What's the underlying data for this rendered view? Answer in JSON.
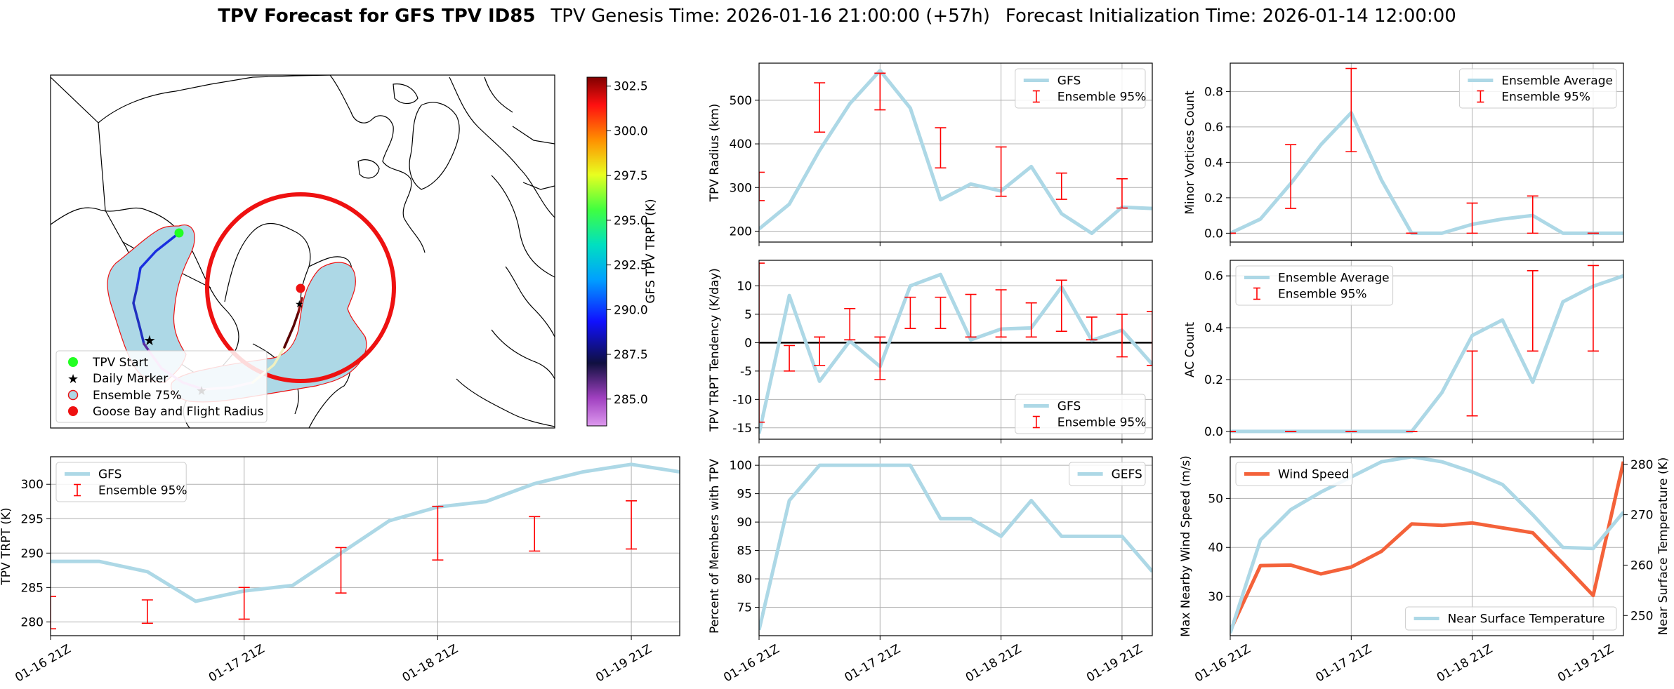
{
  "title": {
    "bold": "TPV Forecast for GFS TPV ID85",
    "genesis": "TPV Genesis Time: 2026-01-16 21:00:00 (+57h)",
    "init": "Forecast Initialization Time: 2026-01-14 12:00:00"
  },
  "colors": {
    "mean_line": "#add8e6",
    "error_bar": "#ff0000",
    "wind_line": "#f4623a",
    "temp_axis": "#4169e1",
    "wind_axis": "#f4623a",
    "land": "#add8e6",
    "circle": "#ee1111"
  },
  "map_panel": {
    "colorbar": {
      "label": "GFS TPV TRPT (K)",
      "ticks": [
        "285.0",
        "287.5",
        "290.0",
        "292.5",
        "295.0",
        "297.5",
        "300.0",
        "302.5"
      ],
      "range": [
        283.5,
        303.0
      ]
    },
    "legend": [
      "TPV Start",
      "Daily Marker",
      "Ensemble 75%",
      "Goose Bay and Flight Radius"
    ]
  },
  "chart_data": [
    {
      "id": "radius",
      "type": "line",
      "ylabel": "TPV Radius (km)",
      "ylim": [
        175,
        585
      ],
      "yticks": [
        200,
        300,
        400,
        500
      ],
      "x": [
        0,
        1,
        2,
        3,
        4,
        5,
        6,
        7,
        8,
        9,
        10,
        11,
        12,
        13
      ],
      "series": [
        {
          "name": "GFS",
          "values": [
            205,
            262,
            385,
            492,
            568,
            482,
            272,
            308,
            292,
            348,
            240,
            195,
            255,
            252
          ]
        }
      ],
      "errorbars": {
        "name": "Ensemble 95%",
        "x": [
          0,
          2,
          4,
          6,
          8,
          10,
          12
        ],
        "low": [
          270,
          427,
          478,
          345,
          280,
          273,
          253
        ],
        "high": [
          335,
          540,
          562,
          437,
          393,
          333,
          320
        ]
      },
      "legend": [
        "GFS",
        "Ensemble 95%"
      ],
      "legend_pos": "top-right"
    },
    {
      "id": "minor",
      "type": "line",
      "ylabel": "Minor Vortices Count",
      "ylim": [
        -0.05,
        0.96
      ],
      "yticks": [
        0.0,
        0.2,
        0.4,
        0.6,
        0.8
      ],
      "ytick_labels": [
        "0.0",
        "0.2",
        "0.4",
        "0.6",
        "0.8"
      ],
      "x": [
        0,
        1,
        2,
        3,
        4,
        5,
        6,
        7,
        8,
        9,
        10,
        11,
        12,
        13
      ],
      "series": [
        {
          "name": "Ensemble Average",
          "values": [
            0.0,
            0.08,
            0.28,
            0.5,
            0.68,
            0.3,
            0.0,
            0.0,
            0.05,
            0.08,
            0.1,
            0.0,
            0.0,
            0.0
          ]
        }
      ],
      "errorbars": {
        "name": "Ensemble 95%",
        "x": [
          0,
          2,
          4,
          6,
          8,
          10,
          12
        ],
        "low": [
          0.0,
          0.14,
          0.46,
          0.0,
          0.0,
          0.0,
          0.0
        ],
        "high": [
          0.0,
          0.5,
          0.93,
          0.0,
          0.17,
          0.21,
          0.0
        ]
      },
      "legend": [
        "Ensemble Average",
        "Ensemble 95%"
      ],
      "legend_pos": "top-right"
    },
    {
      "id": "tendency",
      "type": "line",
      "ylabel": "TPV TRPT Tendency (K/day)",
      "ylim": [
        -17,
        14.5
      ],
      "yticks": [
        -15,
        -10,
        -5,
        0,
        5,
        10
      ],
      "zero_line": true,
      "x": [
        0,
        1,
        2,
        3,
        4,
        5,
        6,
        7,
        8,
        9,
        10,
        11,
        12,
        13
      ],
      "series": [
        {
          "name": "GFS",
          "values": [
            -16,
            8.3,
            -6.8,
            0.3,
            -4.2,
            10,
            12,
            0.5,
            2.4,
            2.6,
            9.8,
            0.4,
            2.2,
            -3.8
          ]
        }
      ],
      "errorbars": {
        "name": "Ensemble 95%",
        "x": [
          0,
          1,
          2,
          3,
          4,
          5,
          6,
          7,
          8,
          9,
          10,
          11,
          12,
          13
        ],
        "low": [
          -14,
          -5,
          -4,
          0.5,
          -6.5,
          2.5,
          2.5,
          1,
          1,
          1,
          2,
          0.5,
          -2.5,
          -4
        ],
        "high": [
          14,
          -0.5,
          1,
          6,
          1,
          8,
          8,
          8.5,
          9.3,
          7,
          11,
          4.5,
          5,
          5.5
        ]
      },
      "legend": [
        "GFS",
        "Ensemble 95%"
      ],
      "legend_pos": "bottom-right"
    },
    {
      "id": "ac",
      "type": "line",
      "ylabel": "AC Count",
      "ylim": [
        -0.03,
        0.66
      ],
      "yticks": [
        0.0,
        0.2,
        0.4,
        0.6
      ],
      "ytick_labels": [
        "0.0",
        "0.2",
        "0.4",
        "0.6"
      ],
      "x": [
        0,
        1,
        2,
        3,
        4,
        5,
        6,
        7,
        8,
        9,
        10,
        11,
        12,
        13
      ],
      "series": [
        {
          "name": "Ensemble Average",
          "values": [
            0,
            0,
            0,
            0,
            0,
            0,
            0,
            0.15,
            0.37,
            0.43,
            0.19,
            0.5,
            0.56,
            0.6
          ]
        }
      ],
      "errorbars": {
        "name": "Ensemble 95%",
        "x": [
          0,
          2,
          4,
          6,
          8,
          10,
          12
        ],
        "low": [
          0,
          0,
          0,
          0,
          0.06,
          0.31,
          0.31
        ],
        "high": [
          0,
          0,
          0,
          0,
          0.31,
          0.62,
          0.64
        ]
      },
      "legend": [
        "Ensemble Average",
        "Ensemble 95%"
      ],
      "legend_pos": "top-left"
    },
    {
      "id": "trpt",
      "type": "line",
      "ylabel": "TPV TRPT (K)",
      "ylim": [
        278,
        304
      ],
      "yticks": [
        280,
        285,
        290,
        295,
        300
      ],
      "x": [
        0,
        1,
        2,
        3,
        4,
        5,
        6,
        7,
        8,
        9,
        10,
        11,
        12,
        13
      ],
      "series": [
        {
          "name": "GFS",
          "values": [
            288.8,
            288.8,
            287.3,
            283,
            284.5,
            285.3,
            290,
            294.7,
            296.7,
            297.5,
            300.1,
            301.8,
            302.9,
            301.8
          ]
        }
      ],
      "errorbars": {
        "name": "Ensemble 95%",
        "x": [
          0,
          2,
          4,
          6,
          8,
          10,
          12
        ],
        "low": [
          279,
          279.8,
          280.4,
          284.2,
          289,
          290.3,
          290.6
        ],
        "high": [
          283.7,
          283.2,
          285,
          290.8,
          296.8,
          295.3,
          297.6
        ]
      },
      "legend": [
        "GFS",
        "Ensemble 95%"
      ],
      "legend_pos": "top-left"
    },
    {
      "id": "percent",
      "type": "line",
      "ylabel": "Percent of Members with TPV",
      "ylim": [
        70,
        101.5
      ],
      "yticks": [
        75,
        80,
        85,
        90,
        95,
        100
      ],
      "x": [
        0,
        1,
        2,
        3,
        4,
        5,
        6,
        7,
        8,
        9,
        10,
        11,
        12,
        13
      ],
      "series": [
        {
          "name": "GEFS",
          "values": [
            71,
            93.8,
            100,
            100,
            100,
            100,
            90.6,
            90.6,
            87.5,
            93.8,
            87.5,
            87.5,
            87.5,
            81.3
          ]
        }
      ],
      "legend": [
        "GEFS"
      ],
      "legend_pos": "top-right"
    },
    {
      "id": "wind",
      "type": "line",
      "ylabel": "Max Nearby Wind Speed (m/s)",
      "ylabel_right": "Near Surface Temperature (K)",
      "ylim": [
        22,
        58.5
      ],
      "yticks": [
        30,
        40,
        50
      ],
      "ylim_right": [
        246,
        281.5
      ],
      "yticks_right": [
        250,
        260,
        270,
        280
      ],
      "x": [
        0,
        1,
        2,
        3,
        4,
        5,
        6,
        7,
        8,
        9,
        10,
        11,
        12,
        13
      ],
      "series": [
        {
          "name": "Wind Speed",
          "axis": "left",
          "values": [
            23,
            36.3,
            36.4,
            34.6,
            36,
            39.2,
            44.8,
            44.5,
            45,
            44,
            43,
            36.7,
            30.2,
            57.5
          ]
        },
        {
          "name": "Near Surface Temperature",
          "axis": "right",
          "values": [
            246.5,
            265,
            271,
            274.5,
            277.5,
            280.5,
            281.5,
            280.5,
            278.5,
            276,
            270,
            263.5,
            263.3,
            270.5
          ]
        }
      ],
      "legend": [
        "Wind Speed",
        "Near Surface Temperature"
      ],
      "legend_pos": "top-left / bottom-right"
    }
  ],
  "x_axis": {
    "tick_positions": [
      0,
      4,
      8,
      12
    ],
    "tick_labels": [
      "01-16 21Z",
      "01-17 21Z",
      "01-18 21Z",
      "01-19 21Z"
    ],
    "xlim": [
      0,
      13
    ]
  }
}
